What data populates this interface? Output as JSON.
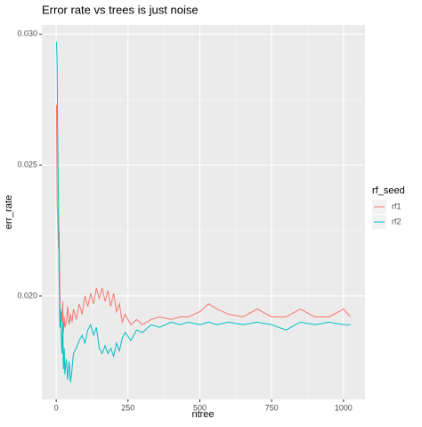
{
  "chart_data": {
    "type": "line",
    "title": "Error rate vs trees is just noise",
    "x_label": "ntree",
    "y_label": "err_rate",
    "legend_title": "rf_seed",
    "legend": "right",
    "grid": true,
    "x": [
      1,
      3,
      5,
      8,
      10,
      13,
      15,
      18,
      20,
      23,
      25,
      28,
      30,
      35,
      40,
      45,
      50,
      55,
      60,
      70,
      80,
      90,
      100,
      110,
      120,
      130,
      140,
      150,
      160,
      170,
      180,
      190,
      200,
      210,
      220,
      230,
      240,
      260,
      280,
      300,
      330,
      360,
      400,
      430,
      460,
      500,
      530,
      560,
      600,
      650,
      700,
      750,
      800,
      850,
      900,
      950,
      1000,
      1024
    ],
    "series": [
      {
        "name": "rf1",
        "color": "#F8766D",
        "values": [
          0.0273,
          0.0235,
          0.0231,
          0.0218,
          0.0225,
          0.02,
          0.0188,
          0.0194,
          0.019,
          0.0198,
          0.0186,
          0.0192,
          0.0188,
          0.019,
          0.0196,
          0.0189,
          0.0193,
          0.019,
          0.0195,
          0.0191,
          0.0197,
          0.0193,
          0.02,
          0.0196,
          0.0201,
          0.0197,
          0.0203,
          0.0199,
          0.0203,
          0.0198,
          0.0202,
          0.0196,
          0.0201,
          0.0194,
          0.0197,
          0.019,
          0.0193,
          0.0189,
          0.0191,
          0.0189,
          0.0191,
          0.0192,
          0.0191,
          0.0192,
          0.0192,
          0.0194,
          0.0197,
          0.0195,
          0.0193,
          0.0192,
          0.0195,
          0.0192,
          0.0192,
          0.0195,
          0.0192,
          0.0192,
          0.0195,
          0.0192
        ]
      },
      {
        "name": "rf2",
        "color": "#00BFC4",
        "values": [
          0.0297,
          0.029,
          0.0262,
          0.0235,
          0.021,
          0.0188,
          0.0195,
          0.0185,
          0.0178,
          0.019,
          0.0172,
          0.018,
          0.017,
          0.0176,
          0.0168,
          0.0175,
          0.0167,
          0.0172,
          0.0178,
          0.018,
          0.0183,
          0.0185,
          0.0182,
          0.0187,
          0.0189,
          0.0185,
          0.0188,
          0.018,
          0.0178,
          0.0181,
          0.0178,
          0.018,
          0.0177,
          0.0182,
          0.0179,
          0.0184,
          0.0186,
          0.0183,
          0.0187,
          0.0186,
          0.0189,
          0.0188,
          0.019,
          0.0189,
          0.019,
          0.0189,
          0.019,
          0.0189,
          0.019,
          0.0189,
          0.019,
          0.0189,
          0.0187,
          0.019,
          0.0189,
          0.019,
          0.0189,
          0.0189
        ]
      }
    ],
    "xlim": [
      -50,
      1075
    ],
    "xticks": [
      0,
      250,
      500,
      750,
      1000
    ],
    "ylim": [
      0.01605,
      0.03035
    ],
    "yticks": [
      {
        "value": 0.02,
        "label": "0.020"
      },
      0.025,
      {
        "value": 0.03,
        "label": "0.030"
      }
    ]
  }
}
